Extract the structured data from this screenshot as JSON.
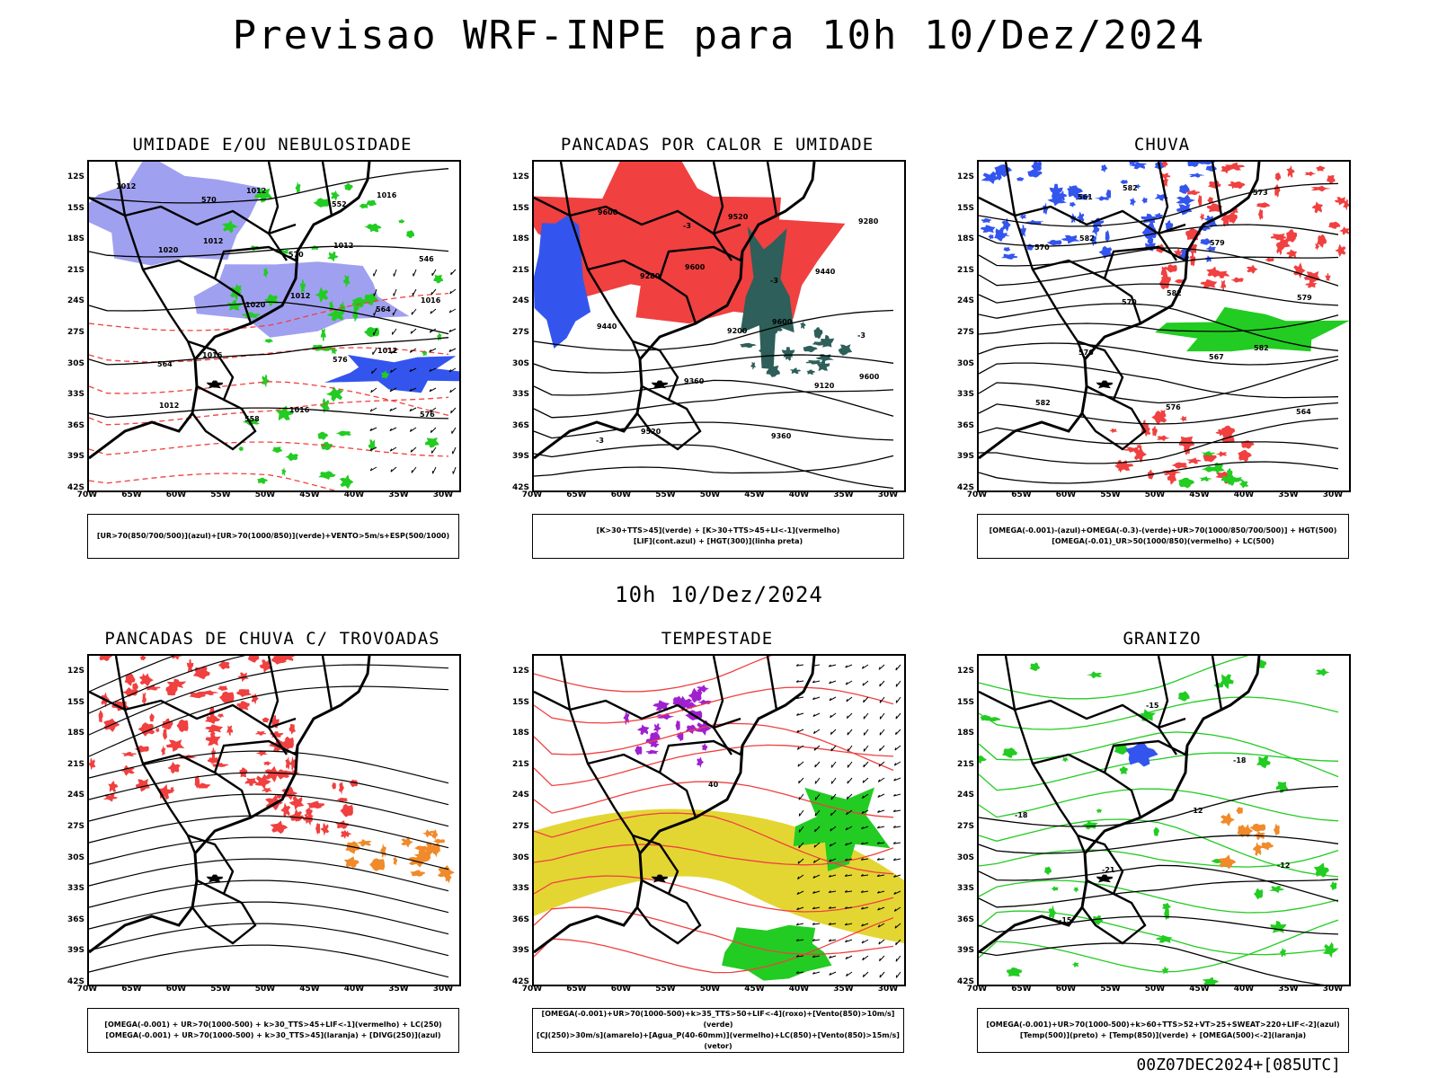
{
  "page": {
    "title": "Previsao WRF-INPE  para 10h 10/Dez/2024",
    "mid_title": "10h 10/Dez/2024",
    "footer": "00Z07DEC2024+[085UTC]"
  },
  "axes": {
    "lat_labels": [
      "12S",
      "15S",
      "18S",
      "21S",
      "24S",
      "27S",
      "30S",
      "33S",
      "36S",
      "39S",
      "42S"
    ],
    "lon_labels": [
      "70W",
      "65W",
      "60W",
      "55W",
      "50W",
      "45W",
      "40W",
      "35W",
      "30W"
    ]
  },
  "colors": {
    "red": "#f04040",
    "blue": "#3355ee",
    "lightblue": "#a0a0f0",
    "green": "#22cc22",
    "darkgreen": "#2e5f5a",
    "yellow": "#e3d633",
    "orange": "#f08a2a",
    "purple": "#a020d0",
    "coast": "#000000"
  },
  "chart_data": [
    {
      "type": "map",
      "title": "UMIDADE E/OU NEBULOSIDADE",
      "legend": [
        "[UR>70(850/700/500)](azul)+[UR>70(1000/850)](verde)+VENTO>5m/s+ESP(500/1000)"
      ],
      "contour_labels": [
        "1012",
        "1012",
        "1012",
        "1012",
        "1012",
        "1012",
        "1012",
        "1016",
        "1016",
        "1016",
        "1016",
        "1020",
        "1020",
        "576",
        "576",
        "570",
        "570",
        "564",
        "564",
        "558",
        "552",
        "546"
      ]
    },
    {
      "type": "map",
      "title": "PANCADAS POR CALOR E UMIDADE",
      "legend": [
        "[K>30+TTS>45](verde) + [K>30+TTS>45+LI<-1](vermelho)",
        "[LIF](cont.azul) + [HGT(300)](linha preta)"
      ],
      "contour_labels": [
        "9600",
        "9600",
        "9600",
        "9600",
        "9520",
        "9520",
        "9440",
        "9440",
        "9360",
        "9360",
        "9280",
        "9280",
        "9200",
        "9120",
        "-3",
        "-3",
        "-3",
        "-3"
      ]
    },
    {
      "type": "map",
      "title": "CHUVA",
      "legend": [
        "[OMEGA(-0.001)-(azul)+OMEGA(-0.3)-(verde)+UR>70(1000/850/700/500)] + HGT(500)",
        "[OMEGA(-0.01)_UR>50(1000/850)(vermelho) + LC(500)"
      ],
      "contour_labels": [
        "582",
        "582",
        "582",
        "582",
        "582",
        "579",
        "579",
        "576",
        "576",
        "573",
        "570",
        "570",
        "567",
        "564",
        "561"
      ]
    },
    {
      "type": "map",
      "title": "PANCADAS DE CHUVA C/ TROVOADAS",
      "legend": [
        "[OMEGA(-0.001) + UR>70(1000-500) + k>30_TTS>45+LIF<-1](vermelho) + LC(250)",
        "[OMEGA(-0.001) + UR>70(1000-500) + k>30_TTS>45](laranja) + [DIVG(250)](azul)"
      ],
      "contour_labels": []
    },
    {
      "type": "map",
      "title": "TEMPESTADE",
      "legend": [
        "[OMEGA(-0.001)+UR>70(1000-500)+k>35_TTS>50+LIF<-4](roxo)+[Vento(850)>10m/s](verde)",
        "[CJ(250)>30m/s](amarelo)+[Agua_P(40-60mm)](vermelho)+LC(850)+[Vento(850)>15m/s](vetor)"
      ],
      "contour_labels": [
        "40"
      ]
    },
    {
      "type": "map",
      "title": "GRANIZO",
      "legend": [
        "[OMEGA(-0.001)+UR>70(1000-500)+k>60+TTS>52+VT>25+SWEAT>220+LIF<-2](azul)",
        "[Temp(500)](preto) + [Temp(850)](verde) + [OMEGA(500)<-2](laranja)"
      ],
      "contour_labels": [
        "-12",
        "-12",
        "-15",
        "-15",
        "-18",
        "-18",
        "-21"
      ]
    }
  ]
}
